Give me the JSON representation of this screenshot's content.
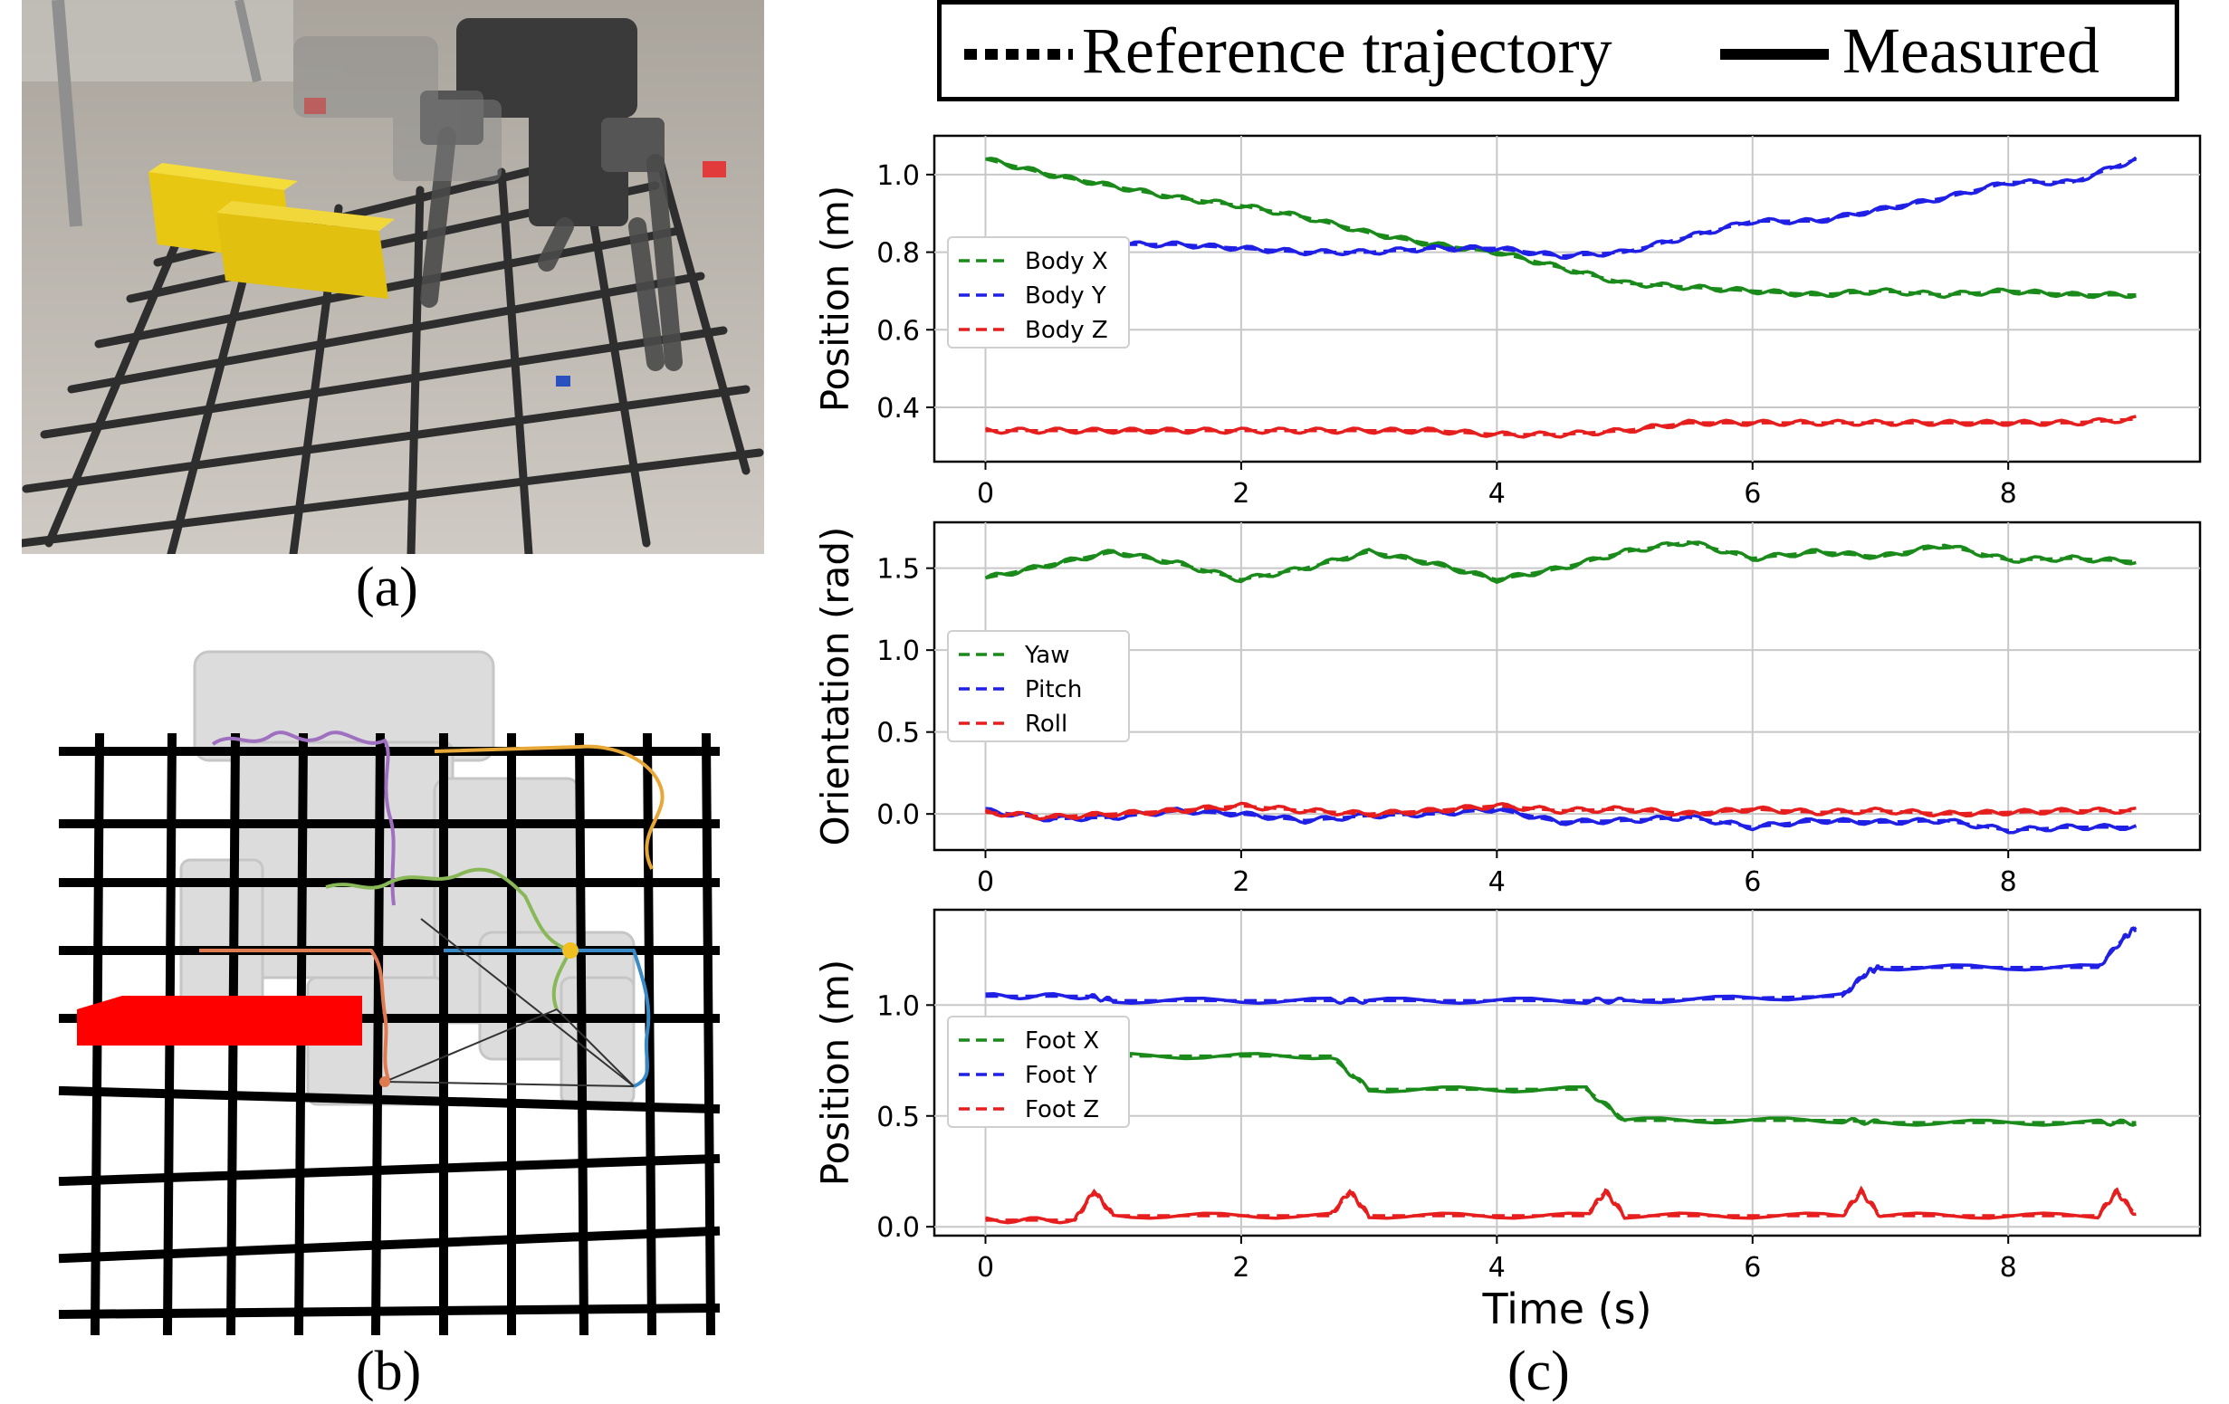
{
  "captions": {
    "a": "(a)",
    "b": "(b)",
    "c": "(c)"
  },
  "top_legend": {
    "dotted_label": "Reference trajectory",
    "solid_label": "Measured"
  },
  "colors": {
    "green": "#1a8a1a",
    "blue": "#1f1fe6",
    "red": "#e61e1e",
    "purple": "#a070c0",
    "orange_path": "#e8a838",
    "green_path": "#88b858",
    "salmon_path": "#e07a50",
    "blue_path": "#3a8ac8",
    "obstacle": "#ff0000"
  },
  "icons": {
    "robot_photo": "robot-photo",
    "rviz_view": "rviz-scene"
  },
  "chart_data": [
    {
      "type": "line",
      "ylabel": "Position (m)",
      "xlabel": "",
      "xlim": [
        -0.4,
        9.5
      ],
      "ylim": [
        0.26,
        1.1
      ],
      "xticks": [
        0,
        2,
        4,
        6,
        8
      ],
      "yticks": [
        0.4,
        0.6,
        0.8,
        1.0
      ],
      "ytick_labels": [
        "0.4",
        "0.6",
        "0.8",
        "1.0"
      ],
      "grid": true,
      "legend_position": "left-middle",
      "series": [
        {
          "name": "Body X",
          "color": "green",
          "x": [
            0,
            0.5,
            1,
            1.5,
            2,
            2.5,
            3,
            3.5,
            4,
            4.5,
            5,
            5.5,
            6,
            6.5,
            7,
            7.5,
            8,
            8.5,
            9
          ],
          "y": [
            1.04,
            1.0,
            0.97,
            0.94,
            0.92,
            0.89,
            0.85,
            0.82,
            0.8,
            0.76,
            0.72,
            0.71,
            0.7,
            0.69,
            0.7,
            0.69,
            0.7,
            0.69,
            0.69
          ]
        },
        {
          "name": "Body Y",
          "color": "blue",
          "x": [
            0,
            0.5,
            1,
            1.5,
            2,
            2.5,
            3,
            3.5,
            4,
            4.5,
            5,
            5.5,
            6,
            6.5,
            7,
            7.5,
            8,
            8.5,
            9
          ],
          "y": [
            0.83,
            0.82,
            0.82,
            0.82,
            0.81,
            0.8,
            0.8,
            0.81,
            0.81,
            0.79,
            0.8,
            0.84,
            0.88,
            0.88,
            0.91,
            0.94,
            0.98,
            0.98,
            1.04
          ]
        },
        {
          "name": "Body Z",
          "color": "red",
          "x": [
            0,
            0.5,
            1,
            1.5,
            2,
            2.5,
            3,
            3.5,
            4,
            4.5,
            5,
            5.5,
            6,
            6.5,
            7,
            7.5,
            8,
            8.5,
            9
          ],
          "y": [
            0.34,
            0.34,
            0.34,
            0.34,
            0.34,
            0.34,
            0.34,
            0.34,
            0.33,
            0.33,
            0.34,
            0.36,
            0.36,
            0.36,
            0.36,
            0.36,
            0.36,
            0.36,
            0.37
          ]
        }
      ]
    },
    {
      "type": "line",
      "ylabel": "Orientation (rad)",
      "xlabel": "",
      "xlim": [
        -0.4,
        9.5
      ],
      "ylim": [
        -0.22,
        1.78
      ],
      "xticks": [
        0,
        2,
        4,
        6,
        8
      ],
      "yticks": [
        0.0,
        0.5,
        1.0,
        1.5
      ],
      "ytick_labels": [
        "0.0",
        "0.5",
        "1.0",
        "1.5"
      ],
      "grid": true,
      "legend_position": "left-middle",
      "series": [
        {
          "name": "Yaw",
          "color": "green",
          "x": [
            0,
            0.5,
            1,
            1.5,
            2,
            2.5,
            3,
            3.5,
            4,
            4.5,
            5,
            5.5,
            6,
            6.5,
            7,
            7.5,
            8,
            8.5,
            9
          ],
          "y": [
            1.44,
            1.52,
            1.6,
            1.53,
            1.43,
            1.5,
            1.6,
            1.53,
            1.43,
            1.5,
            1.6,
            1.66,
            1.56,
            1.6,
            1.57,
            1.64,
            1.55,
            1.56,
            1.54
          ]
        },
        {
          "name": "Pitch",
          "color": "blue",
          "x": [
            0,
            0.5,
            1,
            1.5,
            2,
            2.5,
            3,
            3.5,
            4,
            4.5,
            5,
            5.5,
            6,
            6.5,
            7,
            7.5,
            8,
            8.5,
            9
          ],
          "y": [
            0.02,
            -0.03,
            -0.02,
            0.02,
            0.0,
            -0.04,
            -0.01,
            0.0,
            0.03,
            -0.05,
            -0.04,
            -0.02,
            -0.08,
            -0.04,
            -0.05,
            -0.04,
            -0.1,
            -0.08,
            -0.08
          ]
        },
        {
          "name": "Roll",
          "color": "red",
          "x": [
            0,
            0.5,
            1,
            1.5,
            2,
            2.5,
            3,
            3.5,
            4,
            4.5,
            5,
            5.5,
            6,
            6.5,
            7,
            7.5,
            8,
            8.5,
            9
          ],
          "y": [
            0.01,
            -0.02,
            0.0,
            0.02,
            0.05,
            0.02,
            0.0,
            0.02,
            0.05,
            0.02,
            0.03,
            0.0,
            0.03,
            0.01,
            0.02,
            0.0,
            0.01,
            0.02,
            0.02
          ]
        }
      ]
    },
    {
      "type": "line",
      "ylabel": "Position (m)",
      "xlabel": "Time (s)",
      "xlim": [
        -0.4,
        9.5
      ],
      "ylim": [
        -0.04,
        1.43
      ],
      "xticks": [
        0,
        2,
        4,
        6,
        8
      ],
      "yticks": [
        0.0,
        0.5,
        1.0
      ],
      "ytick_labels": [
        "0.0",
        "0.5",
        "1.0"
      ],
      "grid": true,
      "legend_position": "left-middle",
      "series": [
        {
          "name": "Foot X",
          "color": "green",
          "x": [
            0,
            0.3,
            0.8,
            1.0,
            2.7,
            3.0,
            4.7,
            5.0,
            6.7,
            7.0,
            8.7,
            9.0
          ],
          "y": [
            0.9,
            0.9,
            0.78,
            0.77,
            0.77,
            0.62,
            0.62,
            0.48,
            0.48,
            0.47,
            0.47,
            0.47
          ]
        },
        {
          "name": "Foot Y",
          "color": "blue",
          "x": [
            0,
            0.8,
            1.0,
            2.7,
            3.0,
            4.7,
            5.0,
            6.7,
            6.9,
            7.0,
            8.7,
            8.9,
            9.0
          ],
          "y": [
            1.04,
            1.04,
            1.02,
            1.02,
            1.02,
            1.02,
            1.02,
            1.04,
            1.15,
            1.17,
            1.17,
            1.3,
            1.35
          ]
        },
        {
          "name": "Foot Z",
          "color": "red",
          "x": [
            0,
            0.7,
            0.85,
            1.0,
            2.7,
            2.85,
            3.0,
            4.7,
            4.85,
            5.0,
            6.7,
            6.85,
            7.0,
            8.7,
            8.85,
            9.0
          ],
          "y": [
            0.03,
            0.03,
            0.16,
            0.05,
            0.05,
            0.16,
            0.05,
            0.05,
            0.16,
            0.05,
            0.05,
            0.16,
            0.05,
            0.05,
            0.16,
            0.05
          ]
        }
      ]
    }
  ]
}
